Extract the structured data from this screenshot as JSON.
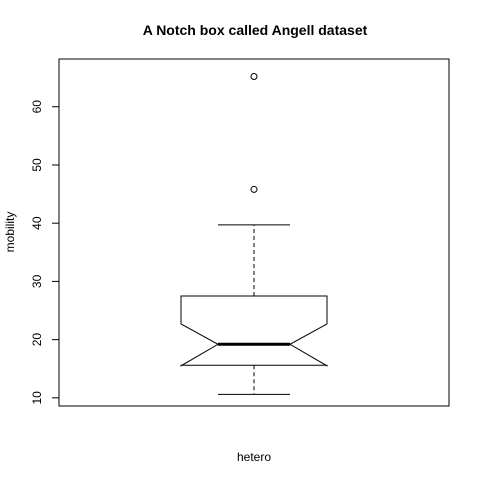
{
  "chart_data": {
    "type": "boxplot",
    "notch": true,
    "title": "A Notch box called Angell dataset",
    "xlabel": "hetero",
    "ylabel": "mobility",
    "ylim": [
      8.6,
      68.2
    ],
    "yticks": [
      10,
      20,
      30,
      40,
      50,
      60
    ],
    "ytick_labels": [
      "10",
      "20",
      "30",
      "40",
      "50",
      "60"
    ],
    "box": {
      "whisker_low": 10.6,
      "q1": 15.6,
      "notch_low": 15.5,
      "median": 19.2,
      "notch_high": 22.7,
      "q3": 27.5,
      "whisker_high": 39.7
    },
    "outliers": [
      45.8,
      65.2
    ],
    "colors": {
      "stroke": "#000000",
      "background": "#ffffff"
    }
  }
}
